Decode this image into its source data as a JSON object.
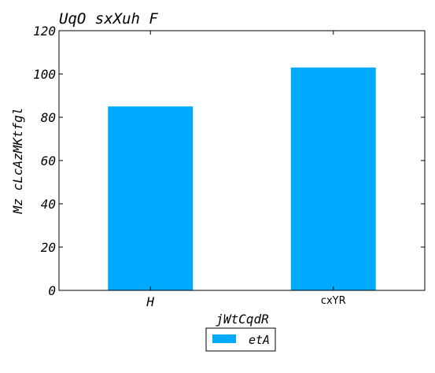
{
  "chart_data": {
    "type": "bar",
    "title": "UqO sxXuh F",
    "xlabel": "jWtCqdR",
    "ylabel": "Mz cLcAzMKtfgl",
    "categories": [
      "H",
      "cxYR"
    ],
    "series": [
      {
        "name": "etA",
        "values": [
          85,
          103
        ],
        "color": "#00aaff"
      }
    ],
    "ylim": [
      0,
      120
    ],
    "yticks": [
      "0",
      "20",
      "40",
      "60",
      "80",
      "100",
      "120"
    ],
    "grid": false,
    "legend_position": "bottom-center"
  }
}
